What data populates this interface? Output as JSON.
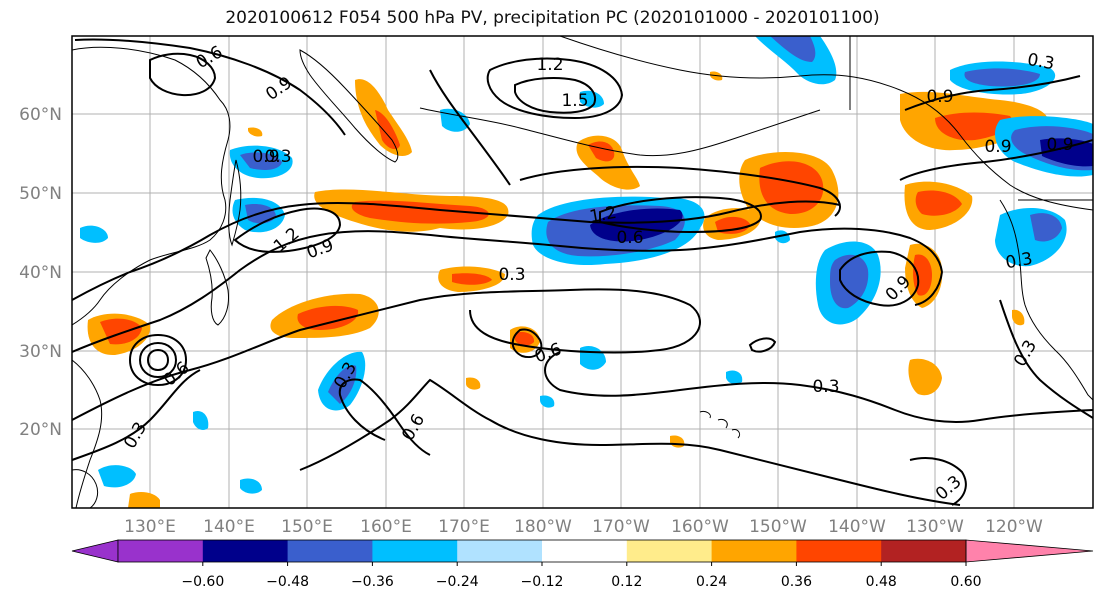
{
  "title": "2020100612 F054 500 hPa PV, precipitation PC (2020101000 - 2020101100)",
  "map": {
    "lon_labels": [
      "130°E",
      "140°E",
      "150°E",
      "160°E",
      "170°E",
      "180°W",
      "170°W",
      "160°W",
      "150°W",
      "140°W",
      "130°W",
      "120°W"
    ],
    "lat_labels": [
      "60°N",
      "50°N",
      "40°N",
      "30°N",
      "20°N"
    ],
    "contour_labels": [
      "0.6",
      "0.9",
      "1.2",
      "1.5",
      "0.3",
      "0.9",
      "0.9",
      "0.9",
      "0.3",
      "1.2",
      "0.9",
      "1.2",
      "0.6",
      "0.3",
      "0.6",
      "0.9",
      "0.3",
      "0.3",
      "0.6",
      "0.6",
      "0.3",
      "0.3",
      "0.3",
      "0.3",
      "0.9"
    ]
  },
  "colorbar": {
    "colors": [
      "#9932cc",
      "#00008b",
      "#3a5fcd",
      "#00bfff",
      "#b0e2ff",
      "#ffffff",
      "#ffec8b",
      "#ffa500",
      "#ff4500",
      "#b22222",
      "#ff82ab"
    ],
    "tick_labels": [
      "−0.60",
      "−0.48",
      "−0.36",
      "−0.24",
      "−0.12",
      "0.12",
      "0.24",
      "0.36",
      "0.48",
      "0.60"
    ]
  },
  "palette": {
    "dark_blue": "#00008b",
    "blue": "#3a5fcd",
    "cyan": "#00bfff",
    "yellow": "#ffec8b",
    "orange": "#ffa500",
    "red_orange": "#ff4500"
  }
}
